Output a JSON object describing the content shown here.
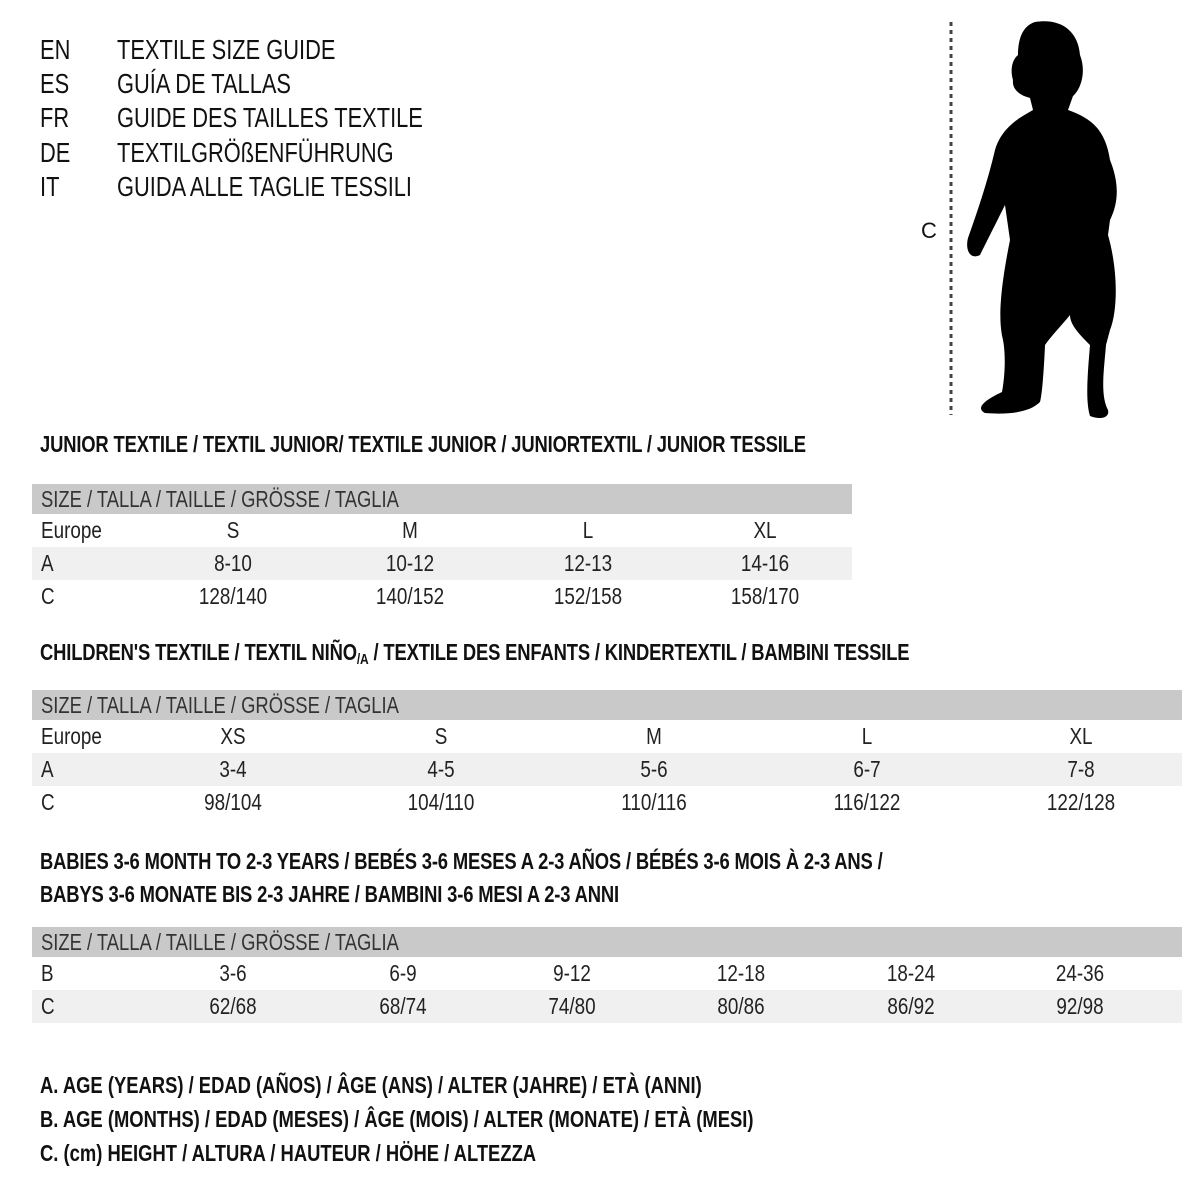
{
  "languages": [
    {
      "code": "EN",
      "title": "TEXTILE SIZE GUIDE"
    },
    {
      "code": "ES",
      "title": "GUÍA DE TALLAS"
    },
    {
      "code": "FR",
      "title": "GUIDE DES TAILLES TEXTILE"
    },
    {
      "code": "DE",
      "title": "TEXTILGRÖßENFÜHRUNG"
    },
    {
      "code": "IT",
      "title": "GUIDA ALLE TAGLIE TESSILI"
    }
  ],
  "figure": {
    "measure_label": "C",
    "icon": "child-silhouette-icon"
  },
  "colors": {
    "header_bar": "#c9c9c9",
    "row_shade": "#f0f0f0"
  },
  "sections": [
    {
      "heading": [
        "JUNIOR TEXTILE / TEXTIL JUNIOR/ TEXTILE JUNIOR / JUNIORTEXTIL / JUNIOR TESSILE"
      ],
      "size_header": "SIZE / TALLA / TAILLE / GRÖSSE / TAGLIA",
      "rows": [
        {
          "label": "Europe",
          "values": [
            "S",
            "M",
            "L",
            "XL"
          ]
        },
        {
          "label": "A",
          "values": [
            "8-10",
            "10-12",
            "12-13",
            "14-16"
          ]
        },
        {
          "label": "C",
          "values": [
            "128/140",
            "140/152",
            "152/158",
            "158/170"
          ]
        }
      ]
    },
    {
      "heading_parts": [
        "CHILDREN'S TEXTILE / TEXTIL NIÑO",
        "/A",
        " / TEXTILE DES ENFANTS / KINDERTEXTIL / BAMBINI TESSILE"
      ],
      "size_header": "SIZE / TALLA / TAILLE / GRÖSSE / TAGLIA",
      "rows": [
        {
          "label": "Europe",
          "values": [
            "XS",
            "S",
            "M",
            "L",
            "XL"
          ]
        },
        {
          "label": "A",
          "values": [
            "3-4",
            "4-5",
            "5-6",
            "6-7",
            "7-8"
          ]
        },
        {
          "label": "C",
          "values": [
            "98/104",
            "104/110",
            "110/116",
            "116/122",
            "122/128"
          ]
        }
      ]
    },
    {
      "heading": [
        "BABIES 3-6 MONTH TO 2-3 YEARS / BEBÉS 3-6 MESES A 2-3 AÑOS / BÉBÉS 3-6 MOIS À 2-3 ANS /",
        "BABYS 3-6 MONATE BIS 2-3 JAHRE / BAMBINI 3-6 MESI A 2-3 ANNI"
      ],
      "size_header": "SIZE / TALLA / TAILLE / GRÖSSE / TAGLIA",
      "rows": [
        {
          "label": "B",
          "values": [
            "3-6",
            "6-9",
            "9-12",
            "12-18",
            "18-24",
            "24-36"
          ]
        },
        {
          "label": "C",
          "values": [
            "62/68",
            "68/74",
            "74/80",
            "80/86",
            "86/92",
            "92/98"
          ]
        }
      ]
    }
  ],
  "legend": [
    "A. AGE (YEARS) / EDAD (AÑOS) / ÂGE (ANS) / ALTER (JAHRE) / ETÀ (ANNI)",
    "B. AGE (MONTHS) / EDAD (MESES) / ÂGE (MOIS) / ALTER (MONATE) / ETÀ (MESI)",
    "C. (cm) HEIGHT / ALTURA / HAUTEUR / HÖHE / ALTEZZA"
  ]
}
